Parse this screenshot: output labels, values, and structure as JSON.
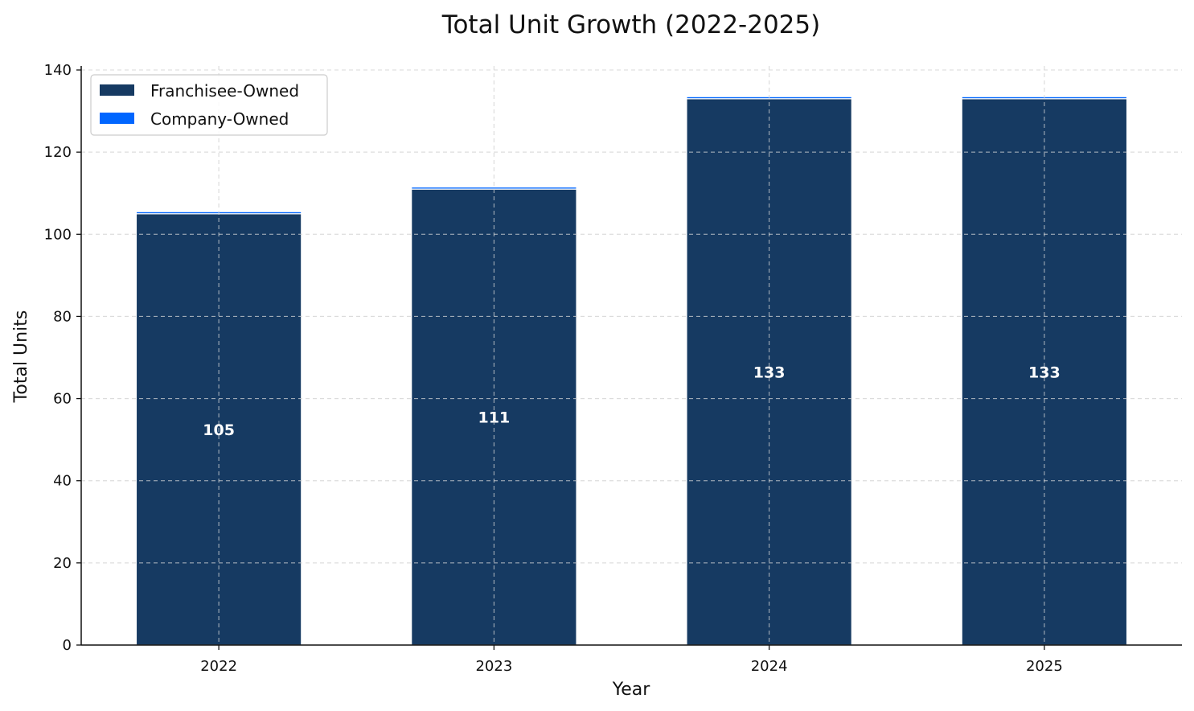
{
  "chart_data": {
    "type": "bar",
    "stacked": true,
    "title": "Total Unit Growth (2022-2025)",
    "xlabel": "Year",
    "ylabel": "Total Units",
    "categories": [
      "2022",
      "2023",
      "2024",
      "2025"
    ],
    "series": [
      {
        "name": "Franchisee-Owned",
        "values": [
          105,
          111,
          133,
          133
        ],
        "color": "#163a62"
      },
      {
        "name": "Company-Owned",
        "values": [
          0.5,
          0.5,
          0.5,
          0.5
        ],
        "color": "#0066ff"
      }
    ],
    "data_labels": [
      "105",
      "111",
      "133",
      "133"
    ],
    "ylim": [
      0,
      140
    ],
    "yticks": [
      0,
      20,
      40,
      60,
      80,
      100,
      120,
      140
    ],
    "grid": true,
    "legend_position": "top-left"
  }
}
